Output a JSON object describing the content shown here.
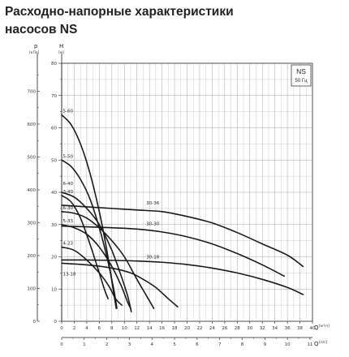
{
  "page": {
    "title_line1": "Расходно-напорные характеристики",
    "title_line2": "насосов NS"
  },
  "chart_data": {
    "type": "line",
    "title": "Расходно-напорные характеристики насосов NS",
    "legend_box": {
      "title": "NS",
      "subtitle": "50 Гц",
      "position": "top-right"
    },
    "grid": true,
    "colors": {
      "curve": "#1a1a1a",
      "grid": "#9a9a9a",
      "axis": "#222222"
    },
    "y_axis_H": {
      "label": "H",
      "unit": "[м]",
      "range": [
        0,
        80
      ],
      "ticks": [
        "0",
        "10",
        "20",
        "30",
        "40",
        "50",
        "60",
        "70",
        "80"
      ]
    },
    "y_axis_p": {
      "label": "p",
      "unit": "[кПа]",
      "range": [
        0,
        785
      ],
      "ticks": [
        "0",
        "100",
        "200",
        "300",
        "400",
        "500",
        "600",
        "700"
      ]
    },
    "x_axis_Q_m3h": {
      "label": "Q",
      "unit": "[м³/ч]",
      "range": [
        0,
        40
      ],
      "ticks": [
        "0",
        "2",
        "4",
        "6",
        "8",
        "10",
        "12",
        "14",
        "16",
        "18",
        "20",
        "22",
        "24",
        "26",
        "28",
        "30",
        "32",
        "34",
        "36",
        "38",
        "40"
      ]
    },
    "x_axis_Q_ls": {
      "label": "Q",
      "unit": "[л/с]",
      "range": [
        0,
        11.11
      ],
      "ticks": [
        "0",
        "1",
        "2",
        "3",
        "4",
        "5",
        "6",
        "7",
        "8",
        "9",
        "10",
        "11"
      ]
    },
    "series": [
      {
        "name": "5-60",
        "x": [
          0,
          1.5,
          3,
          4.5,
          6,
          7.2,
          8.2,
          8.7
        ],
        "y": [
          64,
          61,
          55,
          46,
          34,
          22,
          10,
          4
        ]
      },
      {
        "name": "5-50",
        "x": [
          0,
          1.5,
          3,
          4.5,
          6,
          7.2,
          8.3,
          8.8
        ],
        "y": [
          50,
          48,
          44,
          38,
          29,
          20,
          10,
          4
        ]
      },
      {
        "name": "6-40",
        "x": [
          0,
          2,
          4,
          6,
          8,
          9.5,
          10.5,
          11.1
        ],
        "y": [
          40,
          38.5,
          35,
          30,
          22,
          14,
          8,
          3
        ]
      },
      {
        "name": "3-40",
        "x": [
          0,
          1.5,
          3,
          4.5,
          6,
          6.8,
          7.4
        ],
        "y": [
          39,
          37,
          32,
          24,
          15,
          10,
          7
        ]
      },
      {
        "name": "6-30",
        "x": [
          0,
          2,
          4,
          6,
          8,
          10,
          12,
          13.5,
          14.7
        ],
        "y": [
          34,
          33.5,
          32,
          29,
          25,
          20,
          13,
          8,
          4
        ]
      },
      {
        "name": "5-33",
        "x": [
          0,
          2,
          4,
          6,
          8,
          9.5,
          10.5,
          11
        ],
        "y": [
          30,
          29,
          27,
          23,
          17,
          11,
          6,
          4
        ]
      },
      {
        "name": "4-23",
        "x": [
          0,
          2,
          4,
          6,
          7.5,
          8.6,
          9.6
        ],
        "y": [
          23,
          22,
          19,
          15,
          11,
          7,
          5
        ]
      },
      {
        "name": "13-18",
        "x": [
          0,
          4,
          8,
          11,
          13,
          15,
          17,
          18.5
        ],
        "y": [
          18,
          17.5,
          16.5,
          15,
          13,
          10.5,
          7,
          4.5
        ]
      },
      {
        "name": "30-36",
        "x": [
          0,
          4,
          8,
          12,
          16,
          20,
          24,
          28,
          32,
          36,
          38.5
        ],
        "y": [
          36,
          35.5,
          35,
          34.5,
          34,
          32.5,
          30.5,
          27.5,
          24,
          20.5,
          17
        ]
      },
      {
        "name": "30-30",
        "x": [
          0,
          4,
          8,
          12,
          16,
          20,
          24,
          28,
          32,
          35.5
        ],
        "y": [
          29.5,
          29.3,
          29,
          28.6,
          27.7,
          26.2,
          24,
          21,
          17.5,
          14
        ]
      },
      {
        "name": "30-18",
        "x": [
          0,
          4,
          8,
          12,
          16,
          20,
          24,
          28,
          32,
          36,
          38.5
        ],
        "y": [
          19,
          19,
          18.9,
          18.7,
          18.3,
          17.6,
          16.5,
          15,
          13,
          10.5,
          8.3
        ]
      }
    ],
    "labels": [
      {
        "text": "5-60",
        "x": 0.2,
        "y": 64.5
      },
      {
        "text": "5-50",
        "x": 0.2,
        "y": 50.5
      },
      {
        "text": "6-40",
        "x": 0.2,
        "y": 42
      },
      {
        "text": "3-40",
        "x": 0.2,
        "y": 39.5
      },
      {
        "text": "6-30",
        "x": 0.2,
        "y": 34.5
      },
      {
        "text": "5-33",
        "x": 0.2,
        "y": 30.5
      },
      {
        "text": "4-23",
        "x": 0.2,
        "y": 23.5
      },
      {
        "text": "13-18",
        "x": 0.2,
        "y": 14
      },
      {
        "text": "30-36",
        "x": 13.5,
        "y": 36
      },
      {
        "text": "30-30",
        "x": 13.5,
        "y": 29.5
      },
      {
        "text": "30-18",
        "x": 13.5,
        "y": 19.2
      }
    ]
  }
}
